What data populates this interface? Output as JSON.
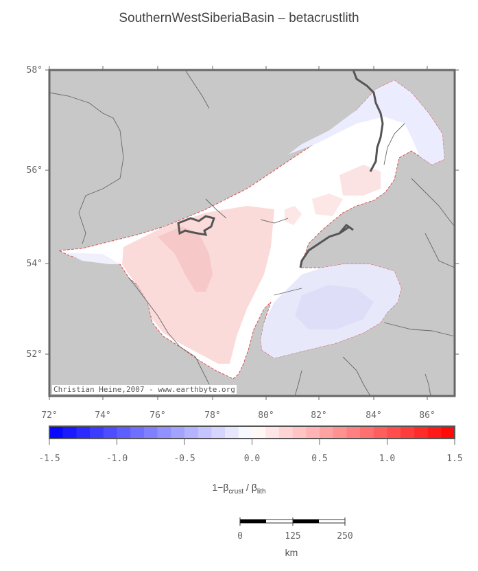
{
  "title": "SouthernWestSiberiaBasin – betacrustlith",
  "map": {
    "lat_labels": [
      "58°",
      "56°",
      "54°",
      "52°"
    ],
    "lon_labels": [
      "72°",
      "74°",
      "76°",
      "78°",
      "80°",
      "82°",
      "84°",
      "86°"
    ],
    "credit": "Christian Heine,2007 - www.earthbyte.org",
    "land_color": "#c8c8c8",
    "basin_color": "#ffffff"
  },
  "colorbar": {
    "ticks": [
      "-1.5",
      "-1.0",
      "-0.5",
      "0.0",
      "0.5",
      "1.0",
      "1.5"
    ],
    "min": -1.5,
    "max": 1.5,
    "negative_color": "#0000ff",
    "positive_color": "#ff0000",
    "label_main": "1−β",
    "label_sub1": "crust",
    "label_mid": " / β",
    "label_sub2": "lith"
  },
  "scalebar": {
    "ticks": [
      "0",
      "125",
      "250"
    ],
    "unit": "km"
  }
}
